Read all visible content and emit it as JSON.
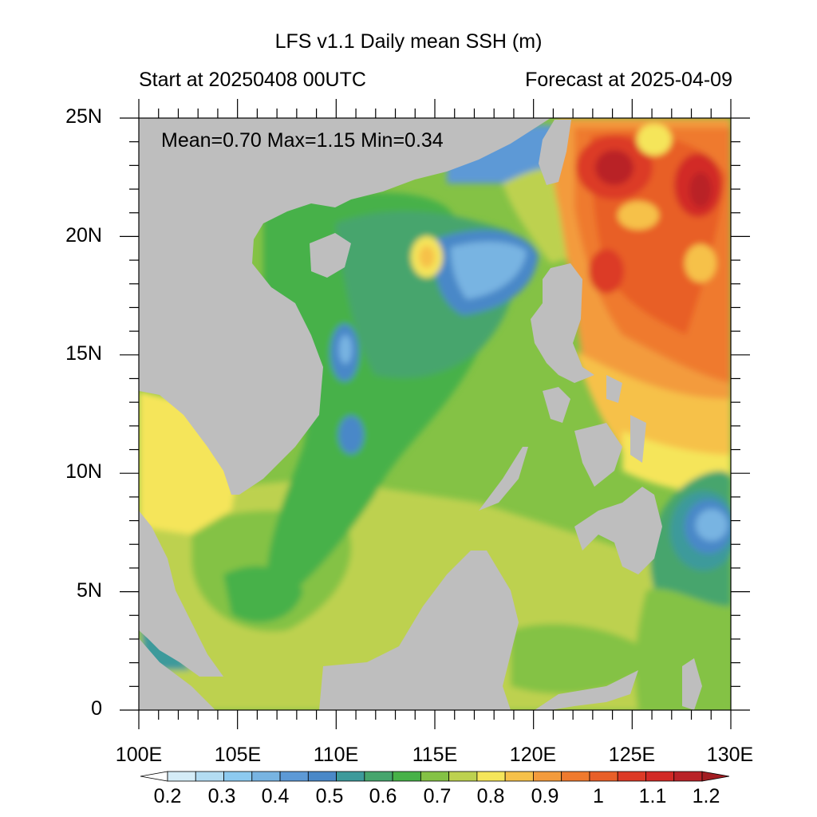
{
  "header": {
    "title": "LFS v1.1 Daily mean SSH (m)",
    "start_label": "Start at 20250408 00UTC",
    "forecast_label": "Forecast at 2025-04-09"
  },
  "stats": {
    "text": "Mean=0.70  Max=1.15  Min=0.34",
    "mean": 0.7,
    "max": 1.15,
    "min": 0.34
  },
  "axes": {
    "lat_labels": [
      "25N",
      "20N",
      "15N",
      "10N",
      "5N",
      "0"
    ],
    "lon_labels": [
      "100E",
      "105E",
      "110E",
      "115E",
      "120E",
      "125E",
      "130E"
    ],
    "lat_range": [
      0,
      25
    ],
    "lon_range": [
      100,
      130
    ]
  },
  "colorbar": {
    "labels": [
      "0.2",
      "0.3",
      "0.4",
      "0.5",
      "0.6",
      "0.7",
      "0.8",
      "0.9",
      "1",
      "1.1",
      "1.2"
    ],
    "levels": [
      0.2,
      0.25,
      0.3,
      0.35,
      0.4,
      0.45,
      0.5,
      0.55,
      0.6,
      0.65,
      0.7,
      0.75,
      0.8,
      0.85,
      0.9,
      0.95,
      1.0,
      1.05,
      1.1,
      1.15,
      1.2
    ],
    "colors": [
      "#ffffff",
      "#d5ecf7",
      "#b3dcf2",
      "#8dcaf0",
      "#78b4e2",
      "#5d99d6",
      "#4a88c8",
      "#3d9a9b",
      "#46a56d",
      "#47b148",
      "#84c245",
      "#bdd14f",
      "#f5e55a",
      "#f6c14a",
      "#f39b3c",
      "#ef7a2e",
      "#e85f28",
      "#dc3a26",
      "#d22a26",
      "#b92227",
      "#a21d22"
    ]
  },
  "chart_data": {
    "type": "heatmap",
    "title": "LFS v1.1 Daily mean SSH (m)",
    "variable": "SSH (m)",
    "xlim": [
      100,
      130
    ],
    "ylim": [
      0,
      25
    ],
    "x_ticks": [
      "100E",
      "105E",
      "110E",
      "115E",
      "120E",
      "125E",
      "130E"
    ],
    "y_ticks": [
      "0",
      "5N",
      "10N",
      "15N",
      "20N",
      "25N"
    ],
    "mean": 0.7,
    "max": 1.15,
    "min": 0.34
  },
  "colors": {
    "land": "#bebebe",
    "frame": "#000000"
  }
}
